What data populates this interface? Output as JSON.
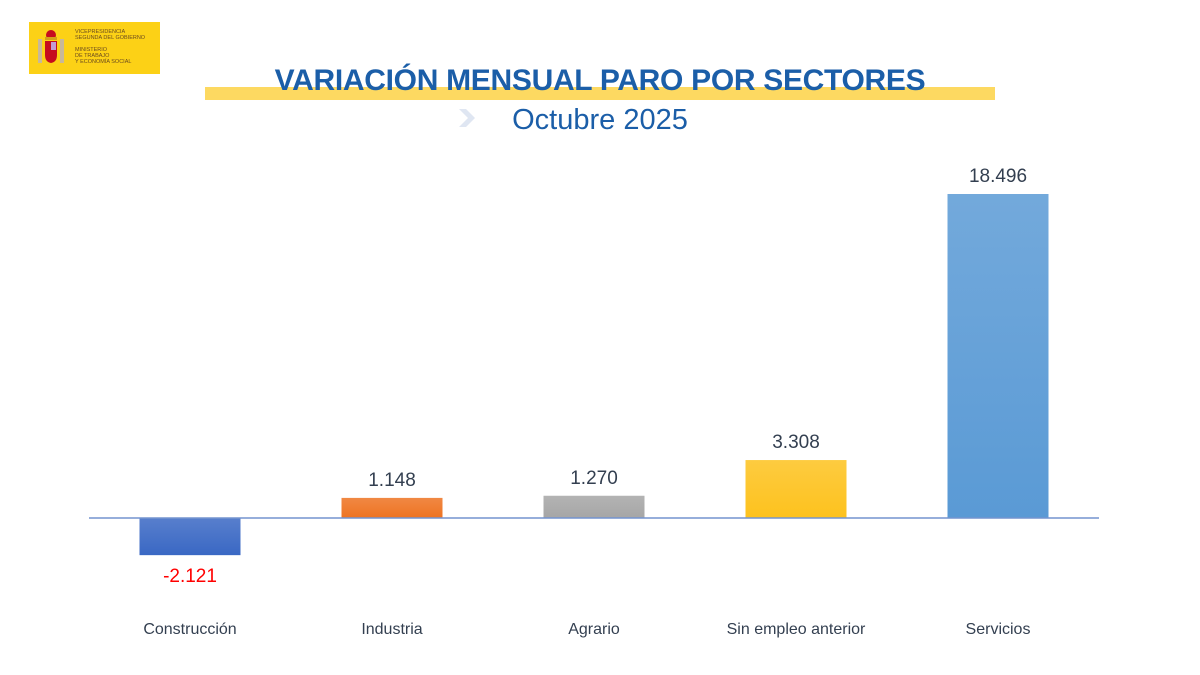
{
  "logo": {
    "text": "VICEPRESIDENCIA\nSEGUNDA DEL GOBIERNO\n\nMINISTERIO\nDE TRABAJO\nY ECONOMÍA SOCIAL",
    "bg": "#fcd116"
  },
  "header": {
    "title": "VARIACIÓN MENSUAL PARO POR SECTORES",
    "subtitle": "Octubre 2025"
  },
  "chart_data": {
    "type": "bar",
    "title": "VARIACIÓN MENSUAL PARO POR SECTORES",
    "subtitle": "Octubre 2025",
    "categories": [
      "Construcción",
      "Industria",
      "Agrario",
      "Sin empleo anterior",
      "Servicios"
    ],
    "values": [
      -2121,
      1148,
      1270,
      3308,
      18496
    ],
    "labels": [
      "-2.121",
      "1.148",
      "1.270",
      "3.308",
      "18.496"
    ],
    "colors": [
      "#3a68c4",
      "#ee7322",
      "#a6a6a6",
      "#fdc21e",
      "#5a9ad5"
    ],
    "label_colors": [
      "#ff0000",
      "#333f50",
      "#333f50",
      "#333f50",
      "#333f50"
    ],
    "xlabel": "",
    "ylabel": "",
    "grid": false,
    "legend": "none"
  }
}
